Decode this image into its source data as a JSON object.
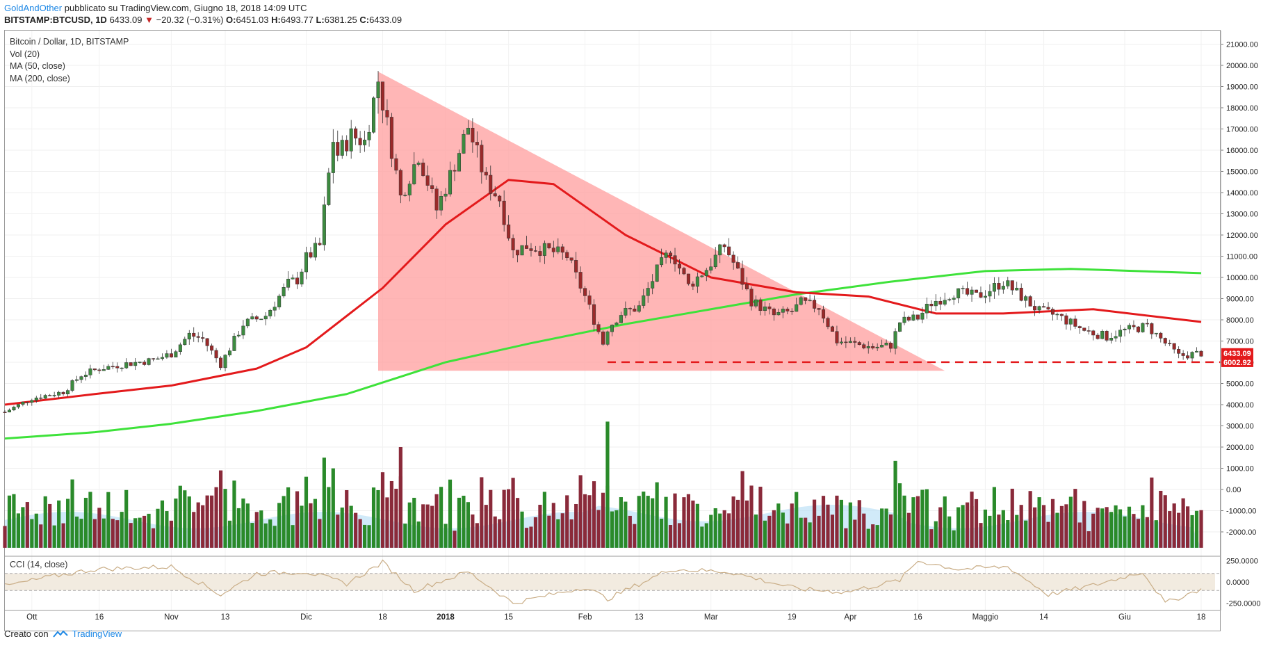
{
  "header": {
    "author": "GoldAndOther",
    "published": "pubblicato su TradingView.com, Giugno 18, 2018 14:09 UTC",
    "symbol": "BITSTAMP:BTCUSD, 1D",
    "last": "6433.09",
    "change": "−20.32 (−0.31%)",
    "o_label": "O:",
    "o": "6451.03",
    "h_label": "H:",
    "h": "6493.77",
    "l_label": "L:",
    "l": "6381.25",
    "c_label": "C:",
    "c": "6433.09"
  },
  "legend": {
    "line1": "Bitcoin / Dollar, 1D, BITSTAMP",
    "line2": "Vol (20)",
    "line3": "MA (50, close)",
    "line4": "MA (200, close)"
  },
  "cci_label": "CCI (14, close)",
  "footer": {
    "created": "Creato con",
    "brand": "TradingView"
  },
  "colors": {
    "up": "#3d8b40",
    "down": "#9b2a2a",
    "ma50": "#e31a1c",
    "ma200": "#3ee23a",
    "triangle": "#ff9e9e",
    "vol_up": "#2a8a2a",
    "vol_down": "#8a2a3a",
    "vol_ma": "#b3dcf5",
    "support": "#e31a1c",
    "cci_line": "#c9ad86",
    "cci_band": "#f2ebe0"
  },
  "chart_data": [
    {
      "type": "candlestick",
      "title": "Bitcoin / Dollar, 1D, BITSTAMP",
      "x_tick_labels": [
        "Ott",
        "16",
        "Nov",
        "13",
        "Dic",
        "18",
        "2018",
        "15",
        "Feb",
        "13",
        "Mar",
        "19",
        "Apr",
        "16",
        "Maggio",
        "14",
        "Giu",
        "18"
      ],
      "x_tick_dates": [
        "2017-10-01",
        "2017-10-16",
        "2017-11-01",
        "2017-11-13",
        "2017-12-01",
        "2017-12-18",
        "2018-01-01",
        "2018-01-15",
        "2018-02-01",
        "2018-02-13",
        "2018-03-01",
        "2018-03-19",
        "2018-04-01",
        "2018-04-16",
        "2018-05-01",
        "2018-05-14",
        "2018-06-01",
        "2018-06-18"
      ],
      "y_tick_labels": [
        "21000.00",
        "20000.00",
        "19000.00",
        "18000.00",
        "17000.00",
        "16000.00",
        "15000.00",
        "14000.00",
        "13000.00",
        "12000.00",
        "11000.00",
        "10000.00",
        "9000.00",
        "8000.00",
        "7000.00",
        "6000.00",
        "5000.00",
        "4000.00",
        "3000.00",
        "2000.00",
        "1000.00",
        "0.00",
        "-1000.00",
        "-2000.00"
      ],
      "ylim": [
        -2000,
        21000
      ],
      "price_series": {
        "dates": [
          "2017-09-25",
          "2017-10-01",
          "2017-10-08",
          "2017-10-12",
          "2017-10-16",
          "2017-10-21",
          "2017-10-28",
          "2017-11-01",
          "2017-11-05",
          "2017-11-08",
          "2017-11-12",
          "2017-11-17",
          "2017-11-22",
          "2017-11-27",
          "2017-11-29",
          "2017-12-01",
          "2017-12-04",
          "2017-12-07",
          "2017-12-08",
          "2017-12-11",
          "2017-12-14",
          "2017-12-17",
          "2017-12-19",
          "2017-12-22",
          "2017-12-26",
          "2017-12-30",
          "2018-01-02",
          "2018-01-06",
          "2018-01-10",
          "2018-01-13",
          "2018-01-16",
          "2018-01-19",
          "2018-01-25",
          "2018-01-28",
          "2018-02-01",
          "2018-02-05",
          "2018-02-06",
          "2018-02-09",
          "2018-02-13",
          "2018-02-17",
          "2018-02-20",
          "2018-02-24",
          "2018-02-28",
          "2018-03-04",
          "2018-03-06",
          "2018-03-10",
          "2018-03-15",
          "2018-03-19",
          "2018-03-21",
          "2018-03-25",
          "2018-03-29",
          "2018-04-01",
          "2018-04-06",
          "2018-04-10",
          "2018-04-12",
          "2018-04-16",
          "2018-04-19",
          "2018-04-24",
          "2018-04-29",
          "2018-05-01",
          "2018-05-05",
          "2018-05-09",
          "2018-05-13",
          "2018-05-17",
          "2018-05-23",
          "2018-05-28",
          "2018-06-01",
          "2018-06-06",
          "2018-06-10",
          "2018-06-13",
          "2018-06-18"
        ],
        "close": [
          3650,
          4300,
          4600,
          5400,
          5700,
          5900,
          6100,
          6400,
          7300,
          7100,
          5900,
          7800,
          8200,
          9700,
          9900,
          10900,
          11500,
          16500,
          15800,
          16700,
          16400,
          19300,
          17200,
          13800,
          15800,
          13200,
          14800,
          17100,
          14500,
          13700,
          11200,
          11500,
          11200,
          11000,
          9100,
          6900,
          7600,
          8300,
          8600,
          10300,
          11300,
          9600,
          10400,
          11500,
          10700,
          8900,
          8200,
          8400,
          8800,
          8600,
          7000,
          6900,
          6700,
          6800,
          7900,
          8100,
          8800,
          9300,
          9100,
          9300,
          9800,
          9100,
          8400,
          8200,
          7500,
          7200,
          7500,
          7700,
          6900,
          6300,
          6433
        ]
      },
      "ma50_series": {
        "dates": [
          "2017-09-25",
          "2017-10-15",
          "2017-11-01",
          "2017-11-20",
          "2017-12-01",
          "2017-12-18",
          "2018-01-01",
          "2018-01-15",
          "2018-01-25",
          "2018-02-10",
          "2018-03-01",
          "2018-03-20",
          "2018-04-05",
          "2018-04-20",
          "2018-05-05",
          "2018-05-25",
          "2018-06-18"
        ],
        "values": [
          4000,
          4500,
          4900,
          5700,
          6700,
          9500,
          12500,
          14600,
          14400,
          12000,
          10000,
          9300,
          9100,
          8300,
          8300,
          8500,
          7900
        ]
      },
      "ma200_series": {
        "dates": [
          "2017-09-25",
          "2017-10-15",
          "2017-11-01",
          "2017-11-20",
          "2017-12-10",
          "2018-01-01",
          "2018-01-20",
          "2018-02-10",
          "2018-03-01",
          "2018-03-20",
          "2018-04-10",
          "2018-05-01",
          "2018-05-20",
          "2018-06-18"
        ],
        "values": [
          2400,
          2700,
          3100,
          3700,
          4500,
          6000,
          6900,
          7800,
          8500,
          9200,
          9800,
          10300,
          10400,
          10200
        ]
      },
      "price_labels": [
        "6433.09",
        "6002.92"
      ],
      "support_level": 6002.92,
      "triangle_vertices": [
        {
          "date": "2017-12-17",
          "price": 19700
        },
        {
          "date": "2017-12-17",
          "price": 5600
        },
        {
          "date": "2018-04-22",
          "price": 5600
        }
      ]
    },
    {
      "type": "bar",
      "title": "Vol (20)",
      "note": "volume bars drawn inside price pane, above the 2017-09-25 → 2018-06-18 date range",
      "peaks": [
        {
          "date": "2017-12-22",
          "value": 2000
        },
        {
          "date": "2018-01-16",
          "value": 550
        },
        {
          "date": "2018-02-06",
          "value": 3200
        },
        {
          "date": "2018-04-28",
          "value": -100
        }
      ]
    },
    {
      "type": "line",
      "title": "CCI (14, close)",
      "y_tick_labels": [
        "250.0000",
        "0.0000",
        "-250.0000"
      ],
      "ylim": [
        -300,
        300
      ],
      "band": [
        -100,
        100
      ],
      "dates": [
        "2017-09-25",
        "2017-10-05",
        "2017-10-15",
        "2017-11-01",
        "2017-11-12",
        "2017-11-20",
        "2017-12-01",
        "2017-12-10",
        "2017-12-18",
        "2017-12-25",
        "2018-01-06",
        "2018-01-16",
        "2018-02-01",
        "2018-02-06",
        "2018-02-20",
        "2018-03-05",
        "2018-03-20",
        "2018-03-31",
        "2018-04-12",
        "2018-04-16",
        "2018-04-25",
        "2018-05-06",
        "2018-05-15",
        "2018-05-25",
        "2018-06-05",
        "2018-06-10",
        "2018-06-18"
      ],
      "values": [
        -50,
        60,
        150,
        180,
        -150,
        100,
        120,
        -20,
        230,
        -100,
        120,
        -250,
        -60,
        -200,
        150,
        120,
        -80,
        -120,
        20,
        250,
        150,
        180,
        -150,
        -40,
        120,
        -250,
        -80
      ]
    }
  ]
}
